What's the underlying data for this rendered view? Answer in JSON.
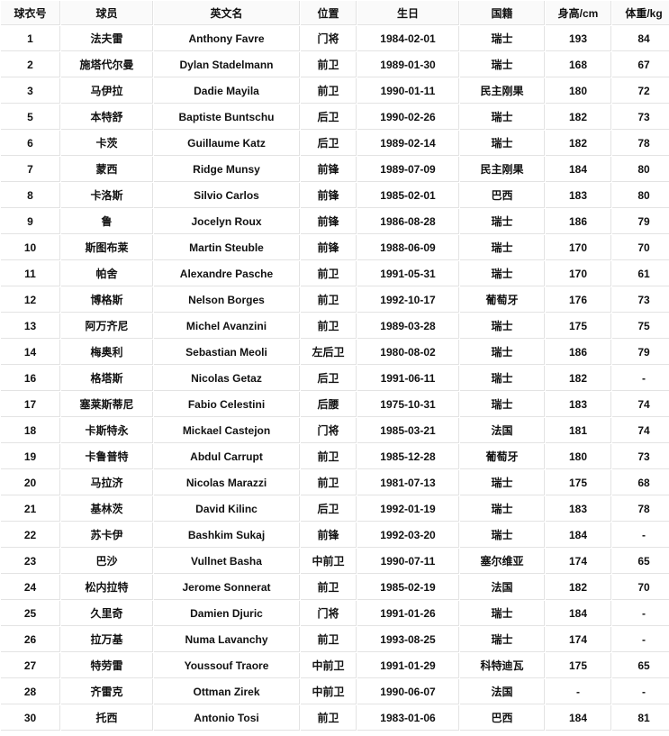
{
  "colors": {
    "border": "#e3e3e3",
    "header_bg": "#fafafa",
    "row_bg": "#ffffff",
    "text": "#111111"
  },
  "table": {
    "headers": [
      "球衣号",
      "球员",
      "英文名",
      "位置",
      "生日",
      "国籍",
      "身高/cm",
      "体重/kg"
    ],
    "rows": [
      [
        "1",
        "法夫雷",
        "Anthony Favre",
        "门将",
        "1984-02-01",
        "瑞士",
        "193",
        "84"
      ],
      [
        "2",
        "施塔代尔曼",
        "Dylan Stadelmann",
        "前卫",
        "1989-01-30",
        "瑞士",
        "168",
        "67"
      ],
      [
        "3",
        "马伊拉",
        "Dadie Mayila",
        "前卫",
        "1990-01-11",
        "民主刚果",
        "180",
        "72"
      ],
      [
        "5",
        "本特舒",
        "Baptiste Buntschu",
        "后卫",
        "1990-02-26",
        "瑞士",
        "182",
        "73"
      ],
      [
        "6",
        "卡茨",
        "Guillaume Katz",
        "后卫",
        "1989-02-14",
        "瑞士",
        "182",
        "78"
      ],
      [
        "7",
        "蒙西",
        "Ridge Munsy",
        "前锋",
        "1989-07-09",
        "民主刚果",
        "184",
        "80"
      ],
      [
        "8",
        "卡洛斯",
        "Silvio Carlos",
        "前锋",
        "1985-02-01",
        "巴西",
        "183",
        "80"
      ],
      [
        "9",
        "鲁",
        "Jocelyn Roux",
        "前锋",
        "1986-08-28",
        "瑞士",
        "186",
        "79"
      ],
      [
        "10",
        "斯图布莱",
        "Martin Steuble",
        "前锋",
        "1988-06-09",
        "瑞士",
        "170",
        "70"
      ],
      [
        "11",
        "帕舍",
        "Alexandre Pasche",
        "前卫",
        "1991-05-31",
        "瑞士",
        "170",
        "61"
      ],
      [
        "12",
        "博格斯",
        "Nelson Borges",
        "前卫",
        "1992-10-17",
        "葡萄牙",
        "176",
        "73"
      ],
      [
        "13",
        "阿万齐尼",
        "Michel Avanzini",
        "前卫",
        "1989-03-28",
        "瑞士",
        "175",
        "75"
      ],
      [
        "14",
        "梅奥利",
        "Sebastian Meoli",
        "左后卫",
        "1980-08-02",
        "瑞士",
        "186",
        "79"
      ],
      [
        "16",
        "格塔斯",
        "Nicolas Getaz",
        "后卫",
        "1991-06-11",
        "瑞士",
        "182",
        "-"
      ],
      [
        "17",
        "塞莱斯蒂尼",
        "Fabio Celestini",
        "后腰",
        "1975-10-31",
        "瑞士",
        "183",
        "74"
      ],
      [
        "18",
        "卡斯特永",
        "Mickael Castejon",
        "门将",
        "1985-03-21",
        "法国",
        "181",
        "74"
      ],
      [
        "19",
        "卡鲁普特",
        "Abdul Carrupt",
        "前卫",
        "1985-12-28",
        "葡萄牙",
        "180",
        "73"
      ],
      [
        "20",
        "马拉济",
        "Nicolas Marazzi",
        "前卫",
        "1981-07-13",
        "瑞士",
        "175",
        "68"
      ],
      [
        "21",
        "基林茨",
        "David Kilinc",
        "后卫",
        "1992-01-19",
        "瑞士",
        "183",
        "78"
      ],
      [
        "22",
        "苏卡伊",
        "Bashkim Sukaj",
        "前锋",
        "1992-03-20",
        "瑞士",
        "184",
        "-"
      ],
      [
        "23",
        "巴沙",
        "Vullnet Basha",
        "中前卫",
        "1990-07-11",
        "塞尔维亚",
        "174",
        "65"
      ],
      [
        "24",
        "松内拉特",
        "Jerome Sonnerat",
        "前卫",
        "1985-02-19",
        "法国",
        "182",
        "70"
      ],
      [
        "25",
        "久里奇",
        "Damien Djuric",
        "门将",
        "1991-01-26",
        "瑞士",
        "184",
        "-"
      ],
      [
        "26",
        "拉万基",
        "Numa Lavanchy",
        "前卫",
        "1993-08-25",
        "瑞士",
        "174",
        "-"
      ],
      [
        "27",
        "特劳雷",
        "Youssouf Traore",
        "中前卫",
        "1991-01-29",
        "科特迪瓦",
        "175",
        "65"
      ],
      [
        "28",
        "齐雷克",
        "Ottman Zirek",
        "中前卫",
        "1990-06-07",
        "法国",
        "-",
        "-"
      ],
      [
        "30",
        "托西",
        "Antonio Tosi",
        "前卫",
        "1983-01-06",
        "巴西",
        "184",
        "81"
      ]
    ]
  }
}
